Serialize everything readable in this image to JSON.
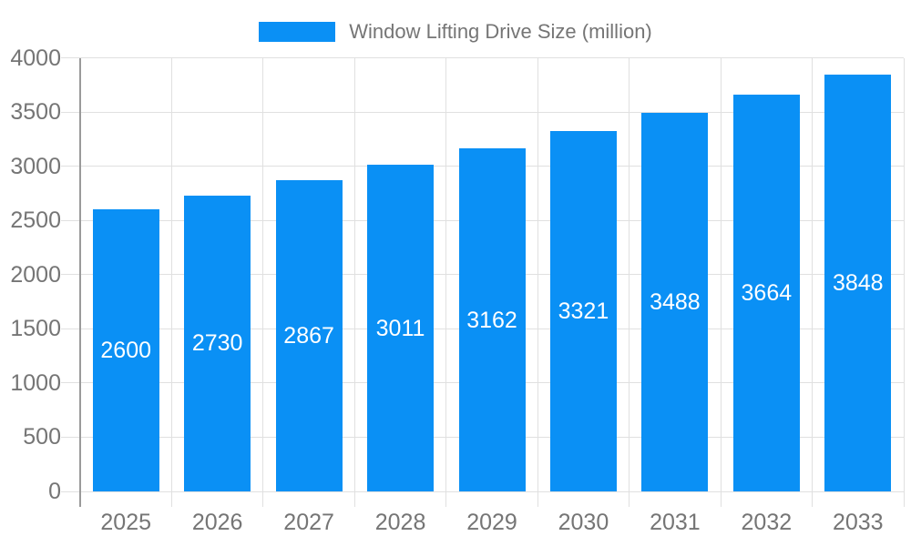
{
  "legend": {
    "label": "Window Lifting Drive Size (million)"
  },
  "colors": {
    "bar": "#0a90f5",
    "grid": "#e0e0e0",
    "axis": "#9a9a9a",
    "axis_text": "#757575",
    "bar_label_text": "#ffffff",
    "background": "#ffffff"
  },
  "chart_data": {
    "type": "bar",
    "title": "Window Lifting Drive Size (million)",
    "series_name": "Window Lifting Drive Size (million)",
    "categories": [
      "2025",
      "2026",
      "2027",
      "2028",
      "2029",
      "2030",
      "2031",
      "2032",
      "2033"
    ],
    "values": [
      2600,
      2730,
      2867,
      3011,
      3162,
      3321,
      3488,
      3664,
      3848
    ],
    "xlabel": "",
    "ylabel": "",
    "ylim": [
      0,
      4000
    ],
    "yticks": [
      0,
      500,
      1000,
      1500,
      2000,
      2500,
      3000,
      3500,
      4000
    ],
    "grid": true,
    "legend_position": "top",
    "value_label_position": "inside-center"
  }
}
